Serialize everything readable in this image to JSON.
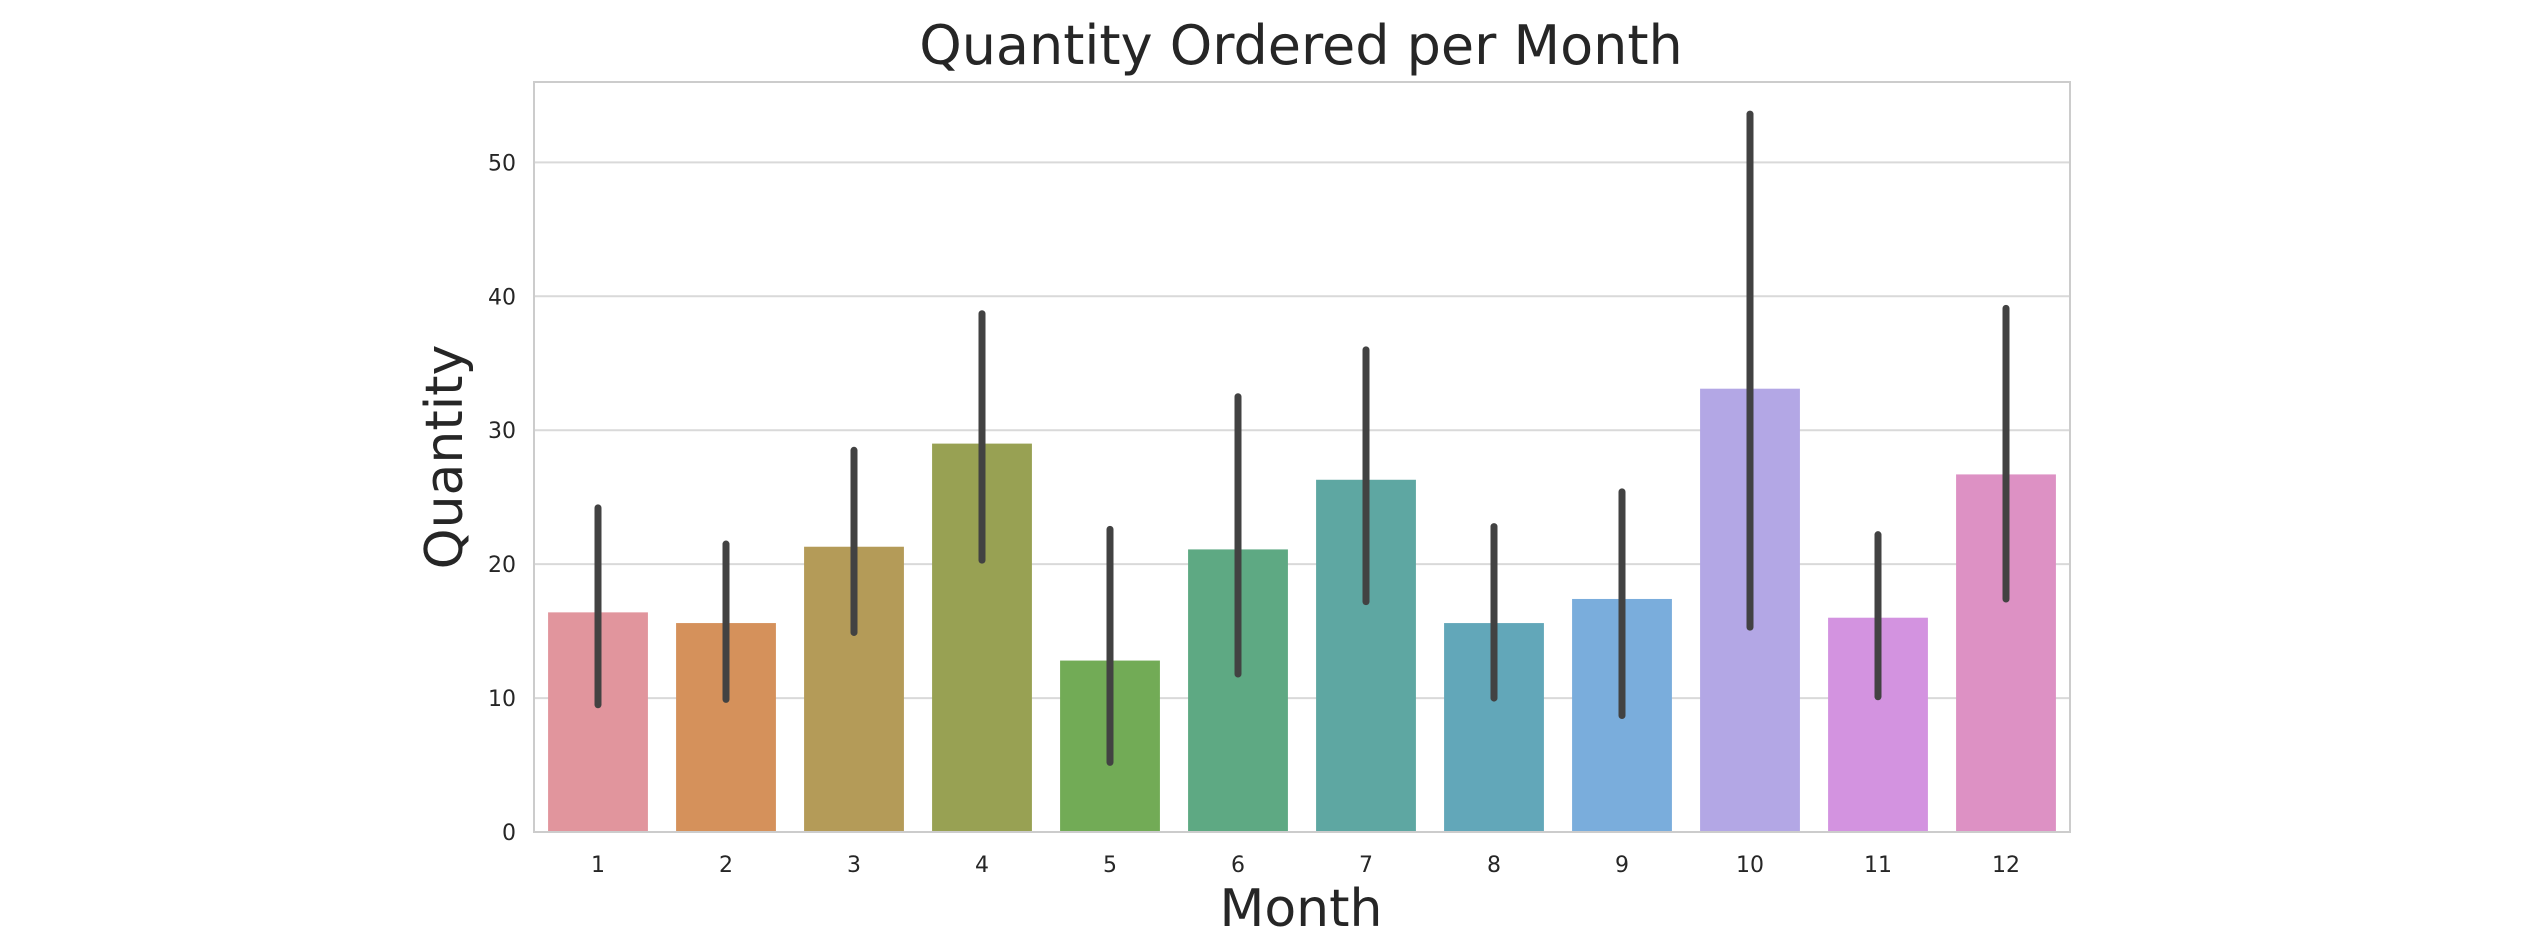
{
  "chart_data": {
    "type": "bar",
    "title": "Quantity Ordered per Month",
    "xlabel": "Month",
    "ylabel": "Quantity",
    "categories": [
      "1",
      "2",
      "3",
      "4",
      "5",
      "6",
      "7",
      "8",
      "9",
      "10",
      "11",
      "12"
    ],
    "values": [
      16.4,
      15.6,
      21.3,
      29.0,
      12.8,
      21.1,
      26.3,
      15.6,
      17.4,
      33.1,
      16.0,
      26.7
    ],
    "error_low": [
      9.5,
      9.9,
      14.9,
      20.3,
      5.2,
      11.8,
      17.2,
      10.0,
      8.7,
      15.3,
      10.1,
      17.4
    ],
    "error_high": [
      24.2,
      21.5,
      28.5,
      38.7,
      22.6,
      32.5,
      36.0,
      22.8,
      25.4,
      53.6,
      22.2,
      39.1
    ],
    "colors": [
      "#e1959d",
      "#d5915b",
      "#b49b58",
      "#98a153",
      "#72ab56",
      "#5ea983",
      "#5ea7a2",
      "#62a7b9",
      "#7aaddc",
      "#b3a7e5",
      "#d393e0",
      "#dd91c4"
    ],
    "ylim": [
      0,
      56
    ],
    "yticks": [
      0,
      10,
      20,
      30,
      40,
      50
    ],
    "grid": true,
    "legend": false
  }
}
